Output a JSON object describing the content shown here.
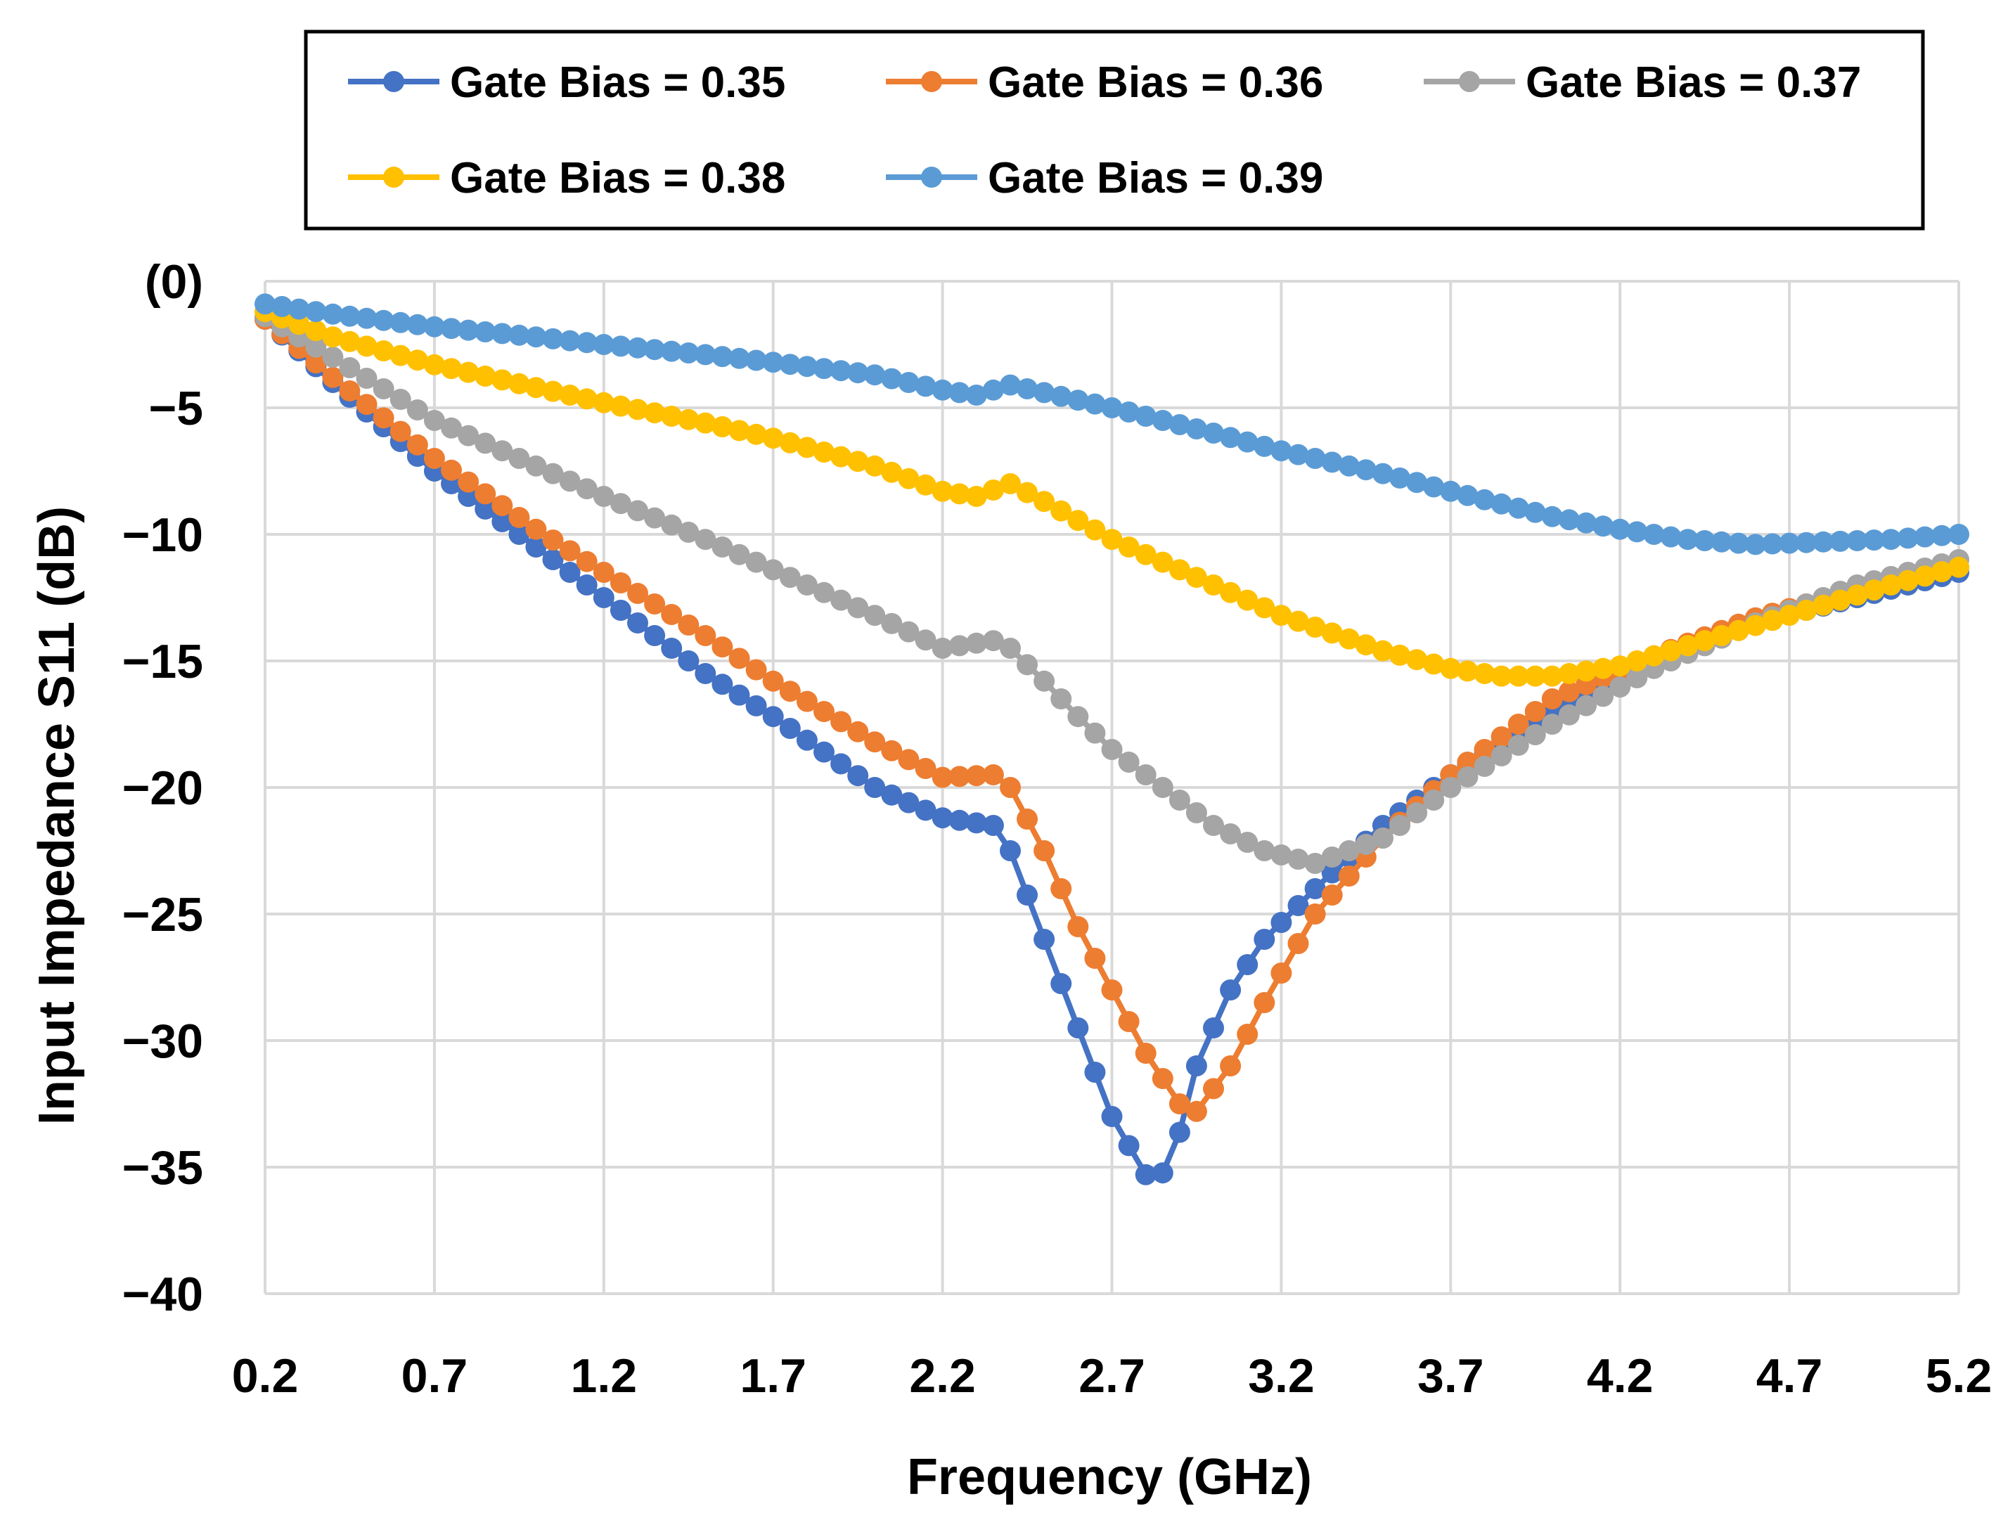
{
  "chart_data": {
    "type": "line",
    "title": "",
    "xlabel": "Frequency (GHz)",
    "ylabel": "Input Impedance S11 (dB)",
    "xlim": [
      0.2,
      5.2
    ],
    "ylim": [
      -40,
      0
    ],
    "x_ticks": [
      0.2,
      0.7,
      1.2,
      1.7,
      2.2,
      2.7,
      3.2,
      3.7,
      4.2,
      4.7,
      5.2
    ],
    "x_tick_labels": [
      "0.2",
      "0.7",
      "1.2",
      "1.7",
      "2.2",
      "2.7",
      "3.2",
      "3.7",
      "4.2",
      "4.7",
      "5.2"
    ],
    "y_ticks": [
      0,
      -5,
      -10,
      -15,
      -20,
      -25,
      -30,
      -35,
      -40
    ],
    "y_tick_labels": [
      "(0)",
      "−5",
      "−10",
      "−15",
      "−20",
      "−25",
      "−30",
      "−35",
      "−40"
    ],
    "grid": true,
    "legend_position": "top",
    "series": [
      {
        "name": "Gate Bias = 0.35",
        "color": "#4472C4",
        "points": [
          [
            0.2,
            -1.5
          ],
          [
            0.4,
            -4.0
          ],
          [
            0.7,
            -7.5
          ],
          [
            1.0,
            -10.5
          ],
          [
            1.2,
            -12.5
          ],
          [
            1.5,
            -15.5
          ],
          [
            1.7,
            -17.2
          ],
          [
            2.0,
            -20.0
          ],
          [
            2.2,
            -21.2
          ],
          [
            2.35,
            -21.5
          ],
          [
            2.4,
            -22.5
          ],
          [
            2.5,
            -26.0
          ],
          [
            2.6,
            -29.5
          ],
          [
            2.7,
            -33.0
          ],
          [
            2.8,
            -35.3
          ],
          [
            2.87,
            -35.2
          ],
          [
            2.95,
            -31.0
          ],
          [
            3.05,
            -28.0
          ],
          [
            3.15,
            -26.0
          ],
          [
            3.3,
            -24.0
          ],
          [
            3.5,
            -21.5
          ],
          [
            3.7,
            -19.5
          ],
          [
            4.0,
            -17.0
          ],
          [
            4.3,
            -15.0
          ],
          [
            4.6,
            -13.5
          ],
          [
            4.9,
            -12.5
          ],
          [
            5.2,
            -11.5
          ]
        ]
      },
      {
        "name": "Gate Bias = 0.36",
        "color": "#ED7D31",
        "points": [
          [
            0.2,
            -1.5
          ],
          [
            0.4,
            -3.8
          ],
          [
            0.7,
            -7.0
          ],
          [
            1.0,
            -9.8
          ],
          [
            1.2,
            -11.5
          ],
          [
            1.5,
            -14.0
          ],
          [
            1.7,
            -15.8
          ],
          [
            2.0,
            -18.2
          ],
          [
            2.2,
            -19.6
          ],
          [
            2.35,
            -19.5
          ],
          [
            2.4,
            -20.0
          ],
          [
            2.5,
            -22.5
          ],
          [
            2.6,
            -25.5
          ],
          [
            2.7,
            -28.0
          ],
          [
            2.8,
            -30.5
          ],
          [
            2.9,
            -32.5
          ],
          [
            2.95,
            -32.8
          ],
          [
            3.05,
            -31.0
          ],
          [
            3.15,
            -28.5
          ],
          [
            3.3,
            -25.0
          ],
          [
            3.5,
            -22.0
          ],
          [
            3.7,
            -19.5
          ],
          [
            4.0,
            -16.5
          ],
          [
            4.3,
            -14.8
          ],
          [
            4.6,
            -13.3
          ],
          [
            4.9,
            -12.2
          ],
          [
            5.2,
            -11.3
          ]
        ]
      },
      {
        "name": "Gate Bias = 0.37",
        "color": "#A5A5A5",
        "points": [
          [
            0.2,
            -1.4
          ],
          [
            0.4,
            -3.0
          ],
          [
            0.7,
            -5.5
          ],
          [
            1.0,
            -7.3
          ],
          [
            1.2,
            -8.5
          ],
          [
            1.5,
            -10.2
          ],
          [
            1.7,
            -11.4
          ],
          [
            2.0,
            -13.2
          ],
          [
            2.2,
            -14.5
          ],
          [
            2.35,
            -14.2
          ],
          [
            2.4,
            -14.5
          ],
          [
            2.5,
            -15.8
          ],
          [
            2.6,
            -17.2
          ],
          [
            2.7,
            -18.5
          ],
          [
            2.8,
            -19.5
          ],
          [
            2.9,
            -20.5
          ],
          [
            3.0,
            -21.5
          ],
          [
            3.15,
            -22.5
          ],
          [
            3.3,
            -23.0
          ],
          [
            3.5,
            -22.0
          ],
          [
            3.7,
            -20.0
          ],
          [
            4.0,
            -17.5
          ],
          [
            4.3,
            -15.3
          ],
          [
            4.6,
            -13.5
          ],
          [
            4.9,
            -12.0
          ],
          [
            5.2,
            -11.0
          ]
        ]
      },
      {
        "name": "Gate Bias = 0.38",
        "color": "#FFC000",
        "points": [
          [
            0.2,
            -1.2
          ],
          [
            0.4,
            -2.2
          ],
          [
            0.7,
            -3.3
          ],
          [
            1.0,
            -4.2
          ],
          [
            1.2,
            -4.8
          ],
          [
            1.5,
            -5.6
          ],
          [
            1.7,
            -6.2
          ],
          [
            2.0,
            -7.3
          ],
          [
            2.2,
            -8.3
          ],
          [
            2.3,
            -8.5
          ],
          [
            2.4,
            -8.0
          ],
          [
            2.5,
            -8.7
          ],
          [
            2.7,
            -10.2
          ],
          [
            3.0,
            -12.0
          ],
          [
            3.2,
            -13.2
          ],
          [
            3.5,
            -14.6
          ],
          [
            3.7,
            -15.3
          ],
          [
            3.85,
            -15.6
          ],
          [
            4.0,
            -15.6
          ],
          [
            4.2,
            -15.2
          ],
          [
            4.5,
            -14.0
          ],
          [
            4.8,
            -12.8
          ],
          [
            5.0,
            -12.0
          ],
          [
            5.2,
            -11.3
          ]
        ]
      },
      {
        "name": "Gate Bias = 0.39",
        "color": "#5B9BD5",
        "points": [
          [
            0.2,
            -0.9
          ],
          [
            0.4,
            -1.3
          ],
          [
            0.7,
            -1.8
          ],
          [
            1.0,
            -2.2
          ],
          [
            1.2,
            -2.5
          ],
          [
            1.5,
            -2.9
          ],
          [
            1.7,
            -3.2
          ],
          [
            2.0,
            -3.7
          ],
          [
            2.2,
            -4.3
          ],
          [
            2.3,
            -4.5
          ],
          [
            2.4,
            -4.1
          ],
          [
            2.5,
            -4.4
          ],
          [
            2.7,
            -5.0
          ],
          [
            3.0,
            -6.0
          ],
          [
            3.2,
            -6.7
          ],
          [
            3.5,
            -7.6
          ],
          [
            3.7,
            -8.3
          ],
          [
            4.0,
            -9.3
          ],
          [
            4.2,
            -9.8
          ],
          [
            4.4,
            -10.2
          ],
          [
            4.6,
            -10.4
          ],
          [
            4.8,
            -10.3
          ],
          [
            5.0,
            -10.2
          ],
          [
            5.2,
            -10.0
          ]
        ]
      }
    ]
  }
}
